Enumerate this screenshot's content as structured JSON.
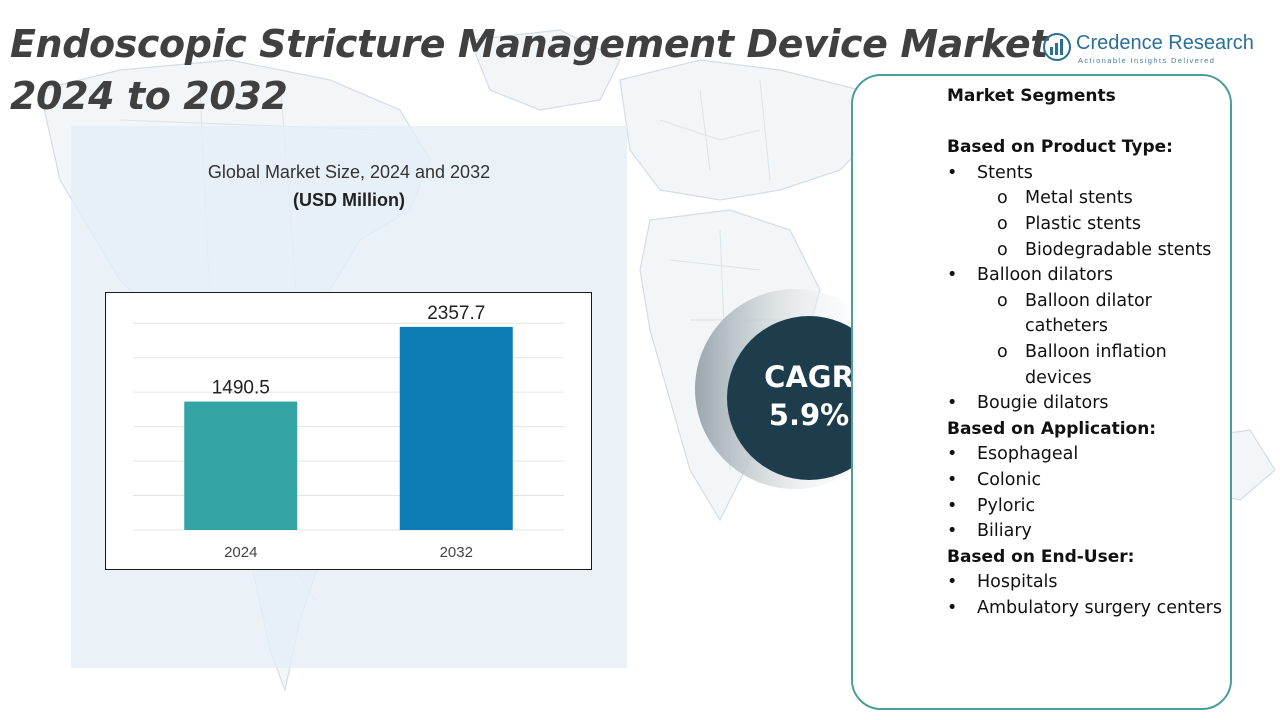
{
  "title": {
    "line1": "Endoscopic Stricture Management Device Market",
    "line2": "2024 to 2032"
  },
  "logo": {
    "name": "Credence Research",
    "tagline": "Actionable Insights Delivered",
    "icon": "bar-chart-globe-icon",
    "color": "#2a6f97"
  },
  "chart_data": {
    "type": "bar",
    "title": "Global Market Size, 2024 and 2032",
    "unit": "(USD Million)",
    "categories": [
      "2024",
      "2032"
    ],
    "values": [
      1490.5,
      2357.7
    ],
    "data_labels": [
      "1490.5",
      "2357.7"
    ],
    "colors": [
      "#33a3a3",
      "#0c7db5"
    ],
    "ylim": [
      0,
      2600
    ],
    "grid": true
  },
  "cagr": {
    "label": "CAGR",
    "value": "5.9%"
  },
  "segments": {
    "title": "Market Segments",
    "groups": [
      {
        "heading": "Based on Product Type:",
        "items": [
          {
            "label": "Stents",
            "sub": [
              "Metal stents",
              "Plastic stents",
              "Biodegradable stents"
            ]
          },
          {
            "label": "Balloon dilators",
            "sub": [
              "Balloon dilator catheters",
              "Balloon inflation devices"
            ]
          },
          {
            "label": "Bougie dilators",
            "sub": []
          }
        ]
      },
      {
        "heading": "Based on Application:",
        "items": [
          {
            "label": "Esophageal",
            "sub": []
          },
          {
            "label": "Colonic",
            "sub": []
          },
          {
            "label": "Pyloric",
            "sub": []
          },
          {
            "label": "Biliary",
            "sub": []
          }
        ]
      },
      {
        "heading": "Based on End-User:",
        "items": [
          {
            "label": "Hospitals",
            "sub": []
          },
          {
            "label": "Ambulatory surgery centers",
            "sub": []
          }
        ]
      }
    ]
  },
  "colors": {
    "title": "#404040",
    "panel_border": "#4d9e9a",
    "cagr_circle": "#1d3d4c"
  }
}
